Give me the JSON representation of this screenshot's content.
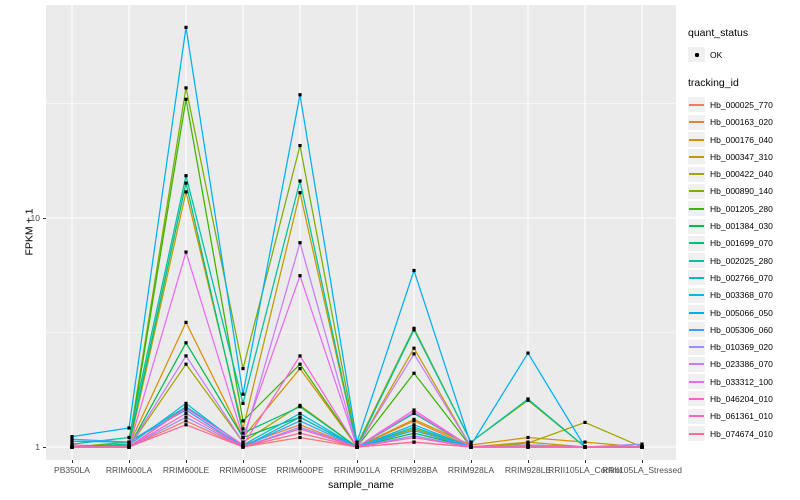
{
  "chart_data": {
    "type": "line",
    "title": "",
    "xlabel": "sample_name",
    "ylabel": "FPKM + 1",
    "y_scale": "log10",
    "y_ticks": [
      1,
      10
    ],
    "y_minor_gridlines": [
      3.162,
      31.62
    ],
    "ylim": [
      0.93,
      85
    ],
    "grid": "on",
    "panel_background": "#EBEBEB",
    "gridline_color": "#FFFFFF",
    "point_color": "#000000",
    "legend_position": "right",
    "categories": [
      "PB350LA",
      "RRIM600LA",
      "RRIM600LE",
      "RRIM600SE",
      "RRIM600PE",
      "RRIM901LA",
      "RRIM928BA",
      "RRIM928LA",
      "RRIM928LE",
      "RRII105LA_Control",
      "RRII105LA_Stressed"
    ],
    "legend": {
      "quant_status_title": "quant_status",
      "quant_status_items": [
        "OK"
      ],
      "tracking_id_title": "tracking_id"
    },
    "series": [
      {
        "name": "Hb_000025_770",
        "color": "#F8766D",
        "values": [
          1.02,
          1.0,
          1.3,
          1.0,
          1.1,
          1.0,
          1.05,
          1.0,
          1.0,
          1.0,
          1.0
        ]
      },
      {
        "name": "Hb_000163_020",
        "color": "#EA8331",
        "values": [
          1.0,
          1.0,
          1.5,
          1.02,
          1.25,
          1.0,
          1.3,
          1.0,
          1.02,
          1.0,
          1.0
        ]
      },
      {
        "name": "Hb_000176_040",
        "color": "#D89000",
        "values": [
          1.0,
          1.02,
          3.5,
          1.1,
          2.2,
          1.0,
          1.32,
          1.02,
          1.1,
          1.05,
          1.0
        ]
      },
      {
        "name": "Hb_000347_310",
        "color": "#C09B00",
        "values": [
          1.0,
          1.0,
          13.0,
          1.2,
          12.9,
          1.0,
          2.7,
          1.0,
          1.05,
          1.0,
          1.0
        ]
      },
      {
        "name": "Hb_000422_040",
        "color": "#A3A500",
        "values": [
          1.0,
          1.0,
          2.3,
          1.05,
          1.52,
          1.0,
          1.2,
          1.0,
          1.04,
          1.28,
          1.0
        ]
      },
      {
        "name": "Hb_000890_140",
        "color": "#7CAE00",
        "values": [
          1.0,
          1.05,
          37.0,
          2.2,
          20.7,
          1.02,
          3.3,
          1.05,
          1.6,
          1.0,
          1.0
        ]
      },
      {
        "name": "Hb_001205_280",
        "color": "#39B600",
        "values": [
          1.0,
          1.02,
          33.0,
          1.3,
          2.3,
          1.0,
          2.1,
          1.0,
          1.02,
          1.0,
          1.0
        ]
      },
      {
        "name": "Hb_001384_030",
        "color": "#00BB4E",
        "values": [
          1.0,
          1.0,
          2.85,
          1.1,
          1.35,
          1.0,
          1.15,
          1.0,
          1.0,
          1.0,
          1.0
        ]
      },
      {
        "name": "Hb_001699_070",
        "color": "#00BF7D",
        "values": [
          1.0,
          1.03,
          14.2,
          1.15,
          1.5,
          1.0,
          1.4,
          1.0,
          1.02,
          1.0,
          1.0
        ]
      },
      {
        "name": "Hb_002025_280",
        "color": "#00C1A3",
        "values": [
          1.03,
          1.1,
          15.3,
          1.55,
          14.5,
          1.0,
          3.25,
          1.05,
          1.62,
          1.0,
          1.0
        ]
      },
      {
        "name": "Hb_002766_070",
        "color": "#00BFC4",
        "values": [
          1.0,
          1.02,
          1.55,
          1.0,
          1.35,
          1.0,
          1.22,
          1.0,
          1.0,
          1.0,
          1.0
        ]
      },
      {
        "name": "Hb_003368_070",
        "color": "#00BAE0",
        "values": [
          1.06,
          1.05,
          1.5,
          1.02,
          1.4,
          1.0,
          1.25,
          1.0,
          1.02,
          1.0,
          1.0
        ]
      },
      {
        "name": "Hb_005066_050",
        "color": "#00B0F6",
        "values": [
          1.11,
          1.21,
          68.0,
          1.7,
          34.5,
          1.05,
          5.9,
          1.02,
          2.57,
          1.0,
          1.0
        ]
      },
      {
        "name": "Hb_005306_060",
        "color": "#35A2FF",
        "values": [
          1.08,
          1.05,
          1.45,
          1.0,
          1.3,
          1.0,
          1.18,
          1.0,
          1.0,
          1.0,
          1.0
        ]
      },
      {
        "name": "Hb_010369_020",
        "color": "#9590FF",
        "values": [
          1.0,
          1.0,
          1.35,
          1.0,
          1.22,
          1.0,
          1.12,
          1.0,
          1.0,
          1.0,
          1.03
        ]
      },
      {
        "name": "Hb_023386_070",
        "color": "#C77CFF",
        "values": [
          1.0,
          1.0,
          2.5,
          1.05,
          7.8,
          1.0,
          2.55,
          1.0,
          1.02,
          1.0,
          1.0
        ]
      },
      {
        "name": "Hb_033312_100",
        "color": "#E76BF3",
        "values": [
          1.0,
          1.0,
          7.1,
          1.1,
          5.6,
          1.0,
          1.42,
          1.0,
          1.0,
          1.0,
          1.0
        ]
      },
      {
        "name": "Hb_046204_010",
        "color": "#FA62DB",
        "values": [
          1.0,
          1.0,
          1.48,
          1.02,
          2.5,
          1.0,
          1.45,
          1.0,
          1.0,
          1.0,
          1.0
        ]
      },
      {
        "name": "Hb_061361_010",
        "color": "#FF62BC",
        "values": [
          1.0,
          1.0,
          1.4,
          1.0,
          1.2,
          1.0,
          1.1,
          1.0,
          1.0,
          1.0,
          1.0
        ]
      },
      {
        "name": "Hb_074674_010",
        "color": "#FF6A98",
        "values": [
          1.0,
          1.0,
          1.25,
          1.0,
          1.15,
          1.0,
          1.05,
          1.0,
          1.0,
          1.0,
          1.0
        ]
      }
    ]
  }
}
